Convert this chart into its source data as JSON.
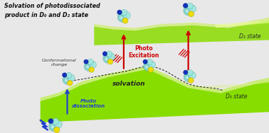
{
  "title_line1": "Solvation of photodissociated",
  "title_line2": "product in D₀ and D₂ state",
  "title_color": "#111111",
  "bg_color": "#e8e8e8",
  "surface_d0_color_dark": "#55bb00",
  "surface_d0_color_mid": "#88dd00",
  "surface_d0_color_light": "#bbee44",
  "surface_d0_color_fade": "#ddee99",
  "surface_d2_color_dark": "#66cc00",
  "surface_d2_color_mid": "#99dd22",
  "surface_d2_color_light": "#ccee66",
  "surface_d2_color_fade": "#eeff99",
  "d0_label": "D₀ state",
  "d2_label": "D₂ state",
  "solvation_label": "solvation",
  "conformational_label": "Conformational\nchange",
  "photo_excitation_label": "Photo\nExcitation",
  "photo_dissociation_label": "Photo\ndissociation",
  "arrow_red": "#cc0000",
  "arrow_blue": "#2244cc",
  "text_red": "#cc0000",
  "text_blue": "#2244cc",
  "text_dark": "#223322",
  "text_italic_color": "#333333",
  "mol_cyan": "#88ddcc",
  "mol_yellow": "#eedd00",
  "mol_blue": "#1133bb",
  "mol_white": "#ddeeee"
}
